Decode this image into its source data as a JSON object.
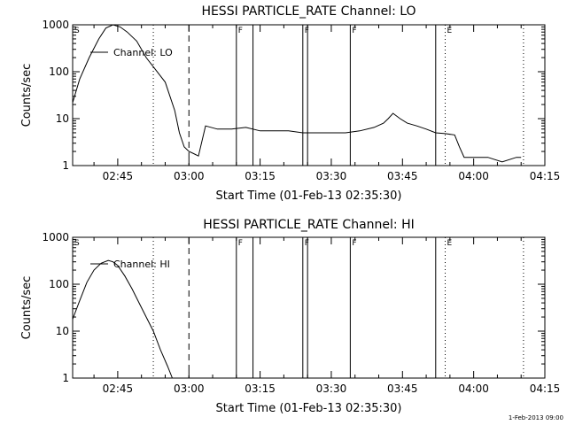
{
  "colors": {
    "background": "#ffffff",
    "foreground": "#000000"
  },
  "footer": {
    "timestamp": "1-Feb-2013 09:00"
  },
  "chart_data": [
    {
      "type": "line",
      "title": "HESSI PARTICLE_RATE Channel: LO",
      "xlabel": "Start Time (01-Feb-13 02:35:30)",
      "ylabel": "Counts/sec",
      "x_ticks": [
        "02:45",
        "03:00",
        "03:15",
        "03:30",
        "03:45",
        "04:00",
        "04:15"
      ],
      "y_ticks": [
        "1",
        "10",
        "100",
        "1000"
      ],
      "y_scale": "log",
      "xlim": [
        "02:35:30",
        "04:15:00"
      ],
      "ylim": [
        1,
        1000
      ],
      "legend": {
        "label": "Channel: LO",
        "position": "top-left"
      },
      "markers": [
        {
          "label": "S",
          "time": "02:35:30",
          "style": "tick"
        },
        {
          "label": "",
          "time": "02:52:30",
          "style": "dotted"
        },
        {
          "label": "",
          "time": "03:00:00",
          "style": "dashed"
        },
        {
          "label": "F",
          "time": "03:10:00",
          "style": "solid"
        },
        {
          "label": "",
          "time": "03:13:30",
          "style": "solid"
        },
        {
          "label": "F",
          "time": "03:24:00",
          "style": "solid"
        },
        {
          "label": "",
          "time": "03:25:00",
          "style": "solid"
        },
        {
          "label": "F",
          "time": "03:34:00",
          "style": "solid"
        },
        {
          "label": "",
          "time": "03:52:00",
          "style": "solid"
        },
        {
          "label": "E",
          "time": "03:54:00",
          "style": "dotted"
        },
        {
          "label": "",
          "time": "04:10:30",
          "style": "dotted"
        }
      ],
      "series": [
        {
          "x": [
            "02:35:30",
            "02:37:00",
            "02:39:00",
            "02:41:00",
            "02:42:30",
            "02:44:00",
            "02:45:30",
            "02:47:00",
            "02:49:00",
            "02:51:00",
            "02:53:00",
            "02:55:00",
            "02:57:00",
            "02:58:00",
            "02:59:00",
            "03:00:00",
            "03:01:00",
            "03:02:00",
            "03:03:30",
            "03:06:00",
            "03:09:00",
            "03:12:00",
            "03:15:00",
            "03:18:00",
            "03:21:00",
            "03:24:00",
            "03:27:00",
            "03:30:00",
            "03:33:00",
            "03:36:00",
            "03:39:00",
            "03:41:00",
            "03:42:00",
            "03:43:00",
            "03:44:30",
            "03:46:00",
            "03:48:00",
            "03:50:00",
            "03:52:00",
            "03:54:00",
            "03:56:00",
            "03:57:00",
            "03:58:00",
            "04:00:00",
            "04:03:00",
            "04:06:00",
            "04:09:00",
            "04:10:00"
          ],
          "values": [
            22,
            70,
            200,
            500,
            850,
            1050,
            900,
            700,
            450,
            200,
            110,
            60,
            15,
            5,
            2.5,
            2,
            1.8,
            1.6,
            7,
            6,
            6,
            6.5,
            5.5,
            5.5,
            5.5,
            5,
            5,
            5,
            5,
            5.5,
            6.5,
            8,
            10,
            13,
            10,
            8,
            7,
            6,
            5,
            4.8,
            4.5,
            2.5,
            1.5,
            1.5,
            1.5,
            1.2,
            1.5,
            1.5
          ]
        }
      ]
    },
    {
      "type": "line",
      "title": "HESSI PARTICLE_RATE Channel: HI",
      "xlabel": "Start Time (01-Feb-13 02:35:30)",
      "ylabel": "Counts/sec",
      "x_ticks": [
        "02:45",
        "03:00",
        "03:15",
        "03:30",
        "03:45",
        "04:00",
        "04:15"
      ],
      "y_ticks": [
        "1",
        "10",
        "100",
        "1000"
      ],
      "y_scale": "log",
      "xlim": [
        "02:35:30",
        "04:15:00"
      ],
      "ylim": [
        1,
        1000
      ],
      "legend": {
        "label": "Channel: HI",
        "position": "top-left"
      },
      "markers": [
        {
          "label": "S",
          "time": "02:35:30",
          "style": "tick"
        },
        {
          "label": "",
          "time": "02:52:30",
          "style": "dotted"
        },
        {
          "label": "",
          "time": "03:00:00",
          "style": "dashed"
        },
        {
          "label": "F",
          "time": "03:10:00",
          "style": "solid"
        },
        {
          "label": "",
          "time": "03:13:30",
          "style": "solid"
        },
        {
          "label": "F",
          "time": "03:24:00",
          "style": "solid"
        },
        {
          "label": "",
          "time": "03:25:00",
          "style": "solid"
        },
        {
          "label": "F",
          "time": "03:34:00",
          "style": "solid"
        },
        {
          "label": "",
          "time": "03:52:00",
          "style": "solid"
        },
        {
          "label": "E",
          "time": "03:54:00",
          "style": "dotted"
        },
        {
          "label": "",
          "time": "04:10:30",
          "style": "dotted"
        }
      ],
      "series": [
        {
          "x": [
            "02:35:30",
            "02:37:00",
            "02:38:30",
            "02:40:00",
            "02:41:30",
            "02:43:00",
            "02:44:00",
            "02:45:00",
            "02:46:30",
            "02:48:00",
            "02:49:30",
            "02:51:00",
            "02:52:30",
            "02:54:00",
            "02:55:30",
            "02:56:30"
          ],
          "values": [
            18,
            45,
            110,
            200,
            280,
            320,
            300,
            250,
            150,
            80,
            40,
            20,
            10,
            4,
            1.8,
            1
          ]
        }
      ]
    }
  ]
}
